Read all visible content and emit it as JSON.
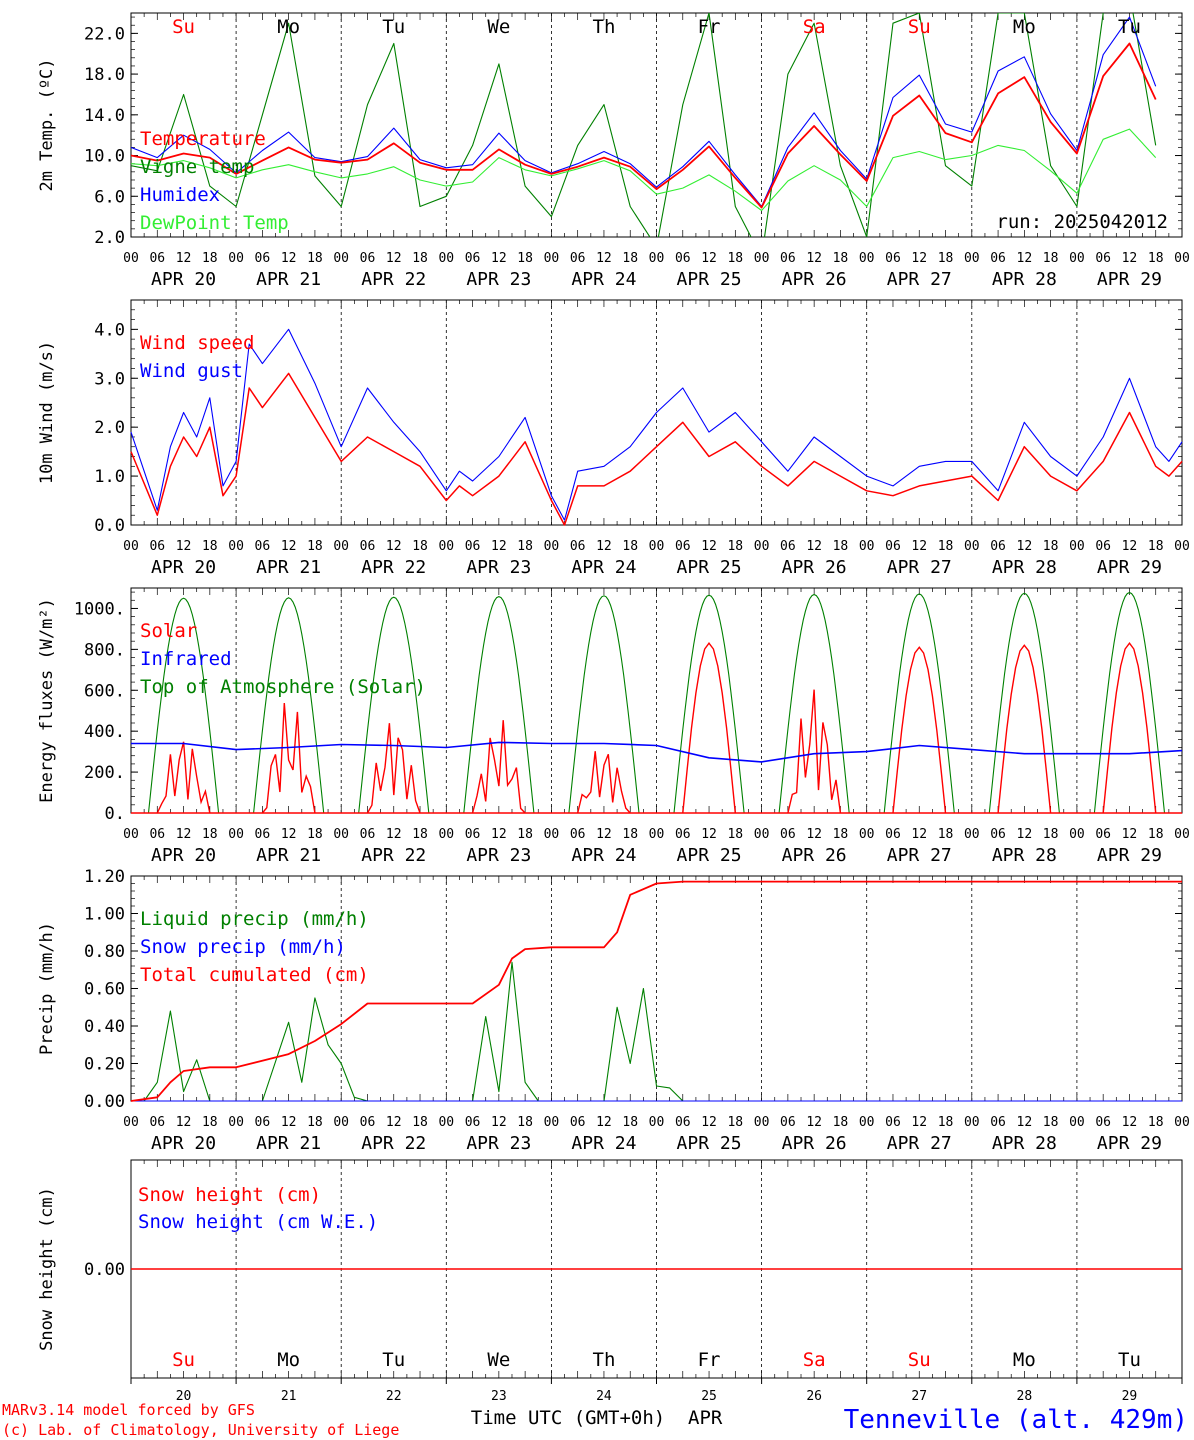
{
  "chart_data": [
    {
      "type": "line",
      "ylabel": "2m Temp. (ºC)",
      "ylim": [
        2,
        24
      ],
      "yticks": [
        "2.0",
        "6.0",
        "10.0",
        "14.0",
        "18.0",
        "22.0"
      ],
      "ytick_values": [
        2,
        6,
        10,
        14,
        18,
        22
      ],
      "run_label": "run: 2025042012",
      "day_labels": [
        "Su",
        "Mo",
        "Tu",
        "We",
        "Th",
        "Fr",
        "Sa",
        "Su",
        "Mo",
        "Tu"
      ],
      "series": [
        {
          "name": "Temperature",
          "color": "#ff0000",
          "hours": [
            0,
            6,
            12,
            18,
            24,
            30,
            36,
            42,
            48,
            54,
            60,
            66,
            72,
            78,
            84,
            90,
            96,
            102,
            108,
            114,
            120,
            126,
            132,
            138,
            144,
            150,
            156,
            162,
            168,
            174,
            180,
            186,
            192,
            198,
            204,
            210,
            216,
            222,
            228,
            234
          ],
          "values": [
            10,
            9.5,
            10.2,
            9.8,
            8.2,
            9.5,
            10.8,
            9.6,
            9.3,
            9.6,
            11.2,
            9.3,
            8.6,
            8.6,
            10.6,
            9.1,
            8.2,
            8.9,
            9.8,
            8.9,
            6.7,
            8.6,
            10.9,
            7.8,
            4.9,
            10.2,
            12.9,
            10.1,
            7.5,
            13.9,
            15.9,
            12.2,
            11.3,
            16.1,
            17.7,
            13.3,
            10.2,
            17.8,
            21.0,
            15.5
          ]
        },
        {
          "name": "Vigne temp",
          "color": "#008000",
          "hours": [
            0,
            6,
            12,
            18,
            24,
            30,
            36,
            42,
            48,
            54,
            60,
            66,
            72,
            78,
            84,
            90,
            96,
            102,
            108,
            114,
            120,
            126,
            132,
            138,
            144,
            150,
            156,
            162,
            168,
            174,
            180,
            186,
            192,
            198,
            204,
            210,
            216,
            222,
            228,
            234
          ],
          "values": [
            9,
            8.5,
            16,
            7,
            5,
            14,
            23,
            8,
            5,
            15,
            21,
            5,
            6,
            11,
            19,
            7,
            4,
            11,
            15,
            5,
            1,
            15,
            24,
            5,
            0,
            18,
            23,
            9,
            2,
            23,
            24,
            9,
            7,
            24,
            24,
            9,
            5,
            24,
            26,
            11
          ]
        },
        {
          "name": "Humidex",
          "color": "#0000ff",
          "hours": [
            0,
            6,
            12,
            18,
            24,
            30,
            36,
            42,
            48,
            54,
            60,
            66,
            72,
            78,
            84,
            90,
            96,
            102,
            108,
            114,
            120,
            126,
            132,
            138,
            144,
            150,
            156,
            162,
            168,
            174,
            180,
            186,
            192,
            198,
            204,
            210,
            216,
            222,
            228,
            234
          ],
          "values": [
            10.8,
            9.8,
            12,
            10.6,
            8.3,
            10.5,
            12.3,
            9.8,
            9.4,
            9.9,
            12.7,
            9.6,
            8.8,
            9.1,
            12.2,
            9.5,
            8.3,
            9.2,
            10.4,
            9.2,
            6.9,
            8.9,
            11.4,
            8.1,
            5.0,
            10.8,
            14.2,
            10.5,
            7.7,
            15.7,
            17.9,
            13.1,
            12.3,
            18.3,
            19.7,
            14.1,
            10.5,
            19.9,
            23.6,
            16.8
          ]
        },
        {
          "name": "DewPoint Temp",
          "color": "#33ee33",
          "hours": [
            0,
            6,
            12,
            18,
            24,
            30,
            36,
            42,
            48,
            54,
            60,
            66,
            72,
            78,
            84,
            90,
            96,
            102,
            108,
            114,
            120,
            126,
            132,
            138,
            144,
            150,
            156,
            162,
            168,
            174,
            180,
            186,
            192,
            198,
            204,
            210,
            216,
            222,
            228,
            234
          ],
          "values": [
            9.2,
            9.0,
            9.5,
            8.8,
            7.8,
            8.6,
            9.1,
            8.4,
            7.8,
            8.2,
            8.9,
            7.6,
            7.0,
            7.4,
            9.8,
            8.6,
            8.0,
            8.7,
            9.5,
            8.5,
            6.2,
            6.8,
            8.1,
            6.5,
            4.6,
            7.5,
            9.0,
            7.6,
            5.0,
            9.8,
            10.4,
            9.6,
            10.0,
            11.0,
            10.5,
            8.5,
            6.3,
            11.6,
            12.6,
            9.8
          ]
        }
      ]
    },
    {
      "type": "line",
      "ylabel": "10m Wind (m/s)",
      "ylim": [
        0,
        4.6
      ],
      "yticks": [
        "0.0",
        "1.0",
        "2.0",
        "3.0",
        "4.0"
      ],
      "ytick_values": [
        0,
        1,
        2,
        3,
        4
      ],
      "series": [
        {
          "name": "Wind speed",
          "color": "#ff0000",
          "hours": [
            0,
            6,
            9,
            12,
            15,
            18,
            21,
            24,
            27,
            30,
            36,
            42,
            48,
            54,
            60,
            66,
            72,
            75,
            78,
            84,
            90,
            96,
            99,
            102,
            108,
            114,
            120,
            126,
            132,
            138,
            144,
            150,
            156,
            162,
            168,
            174,
            180,
            186,
            192,
            198,
            204,
            210,
            216,
            222,
            228,
            234,
            237,
            240
          ],
          "values": [
            1.5,
            0.2,
            1.2,
            1.8,
            1.4,
            2.0,
            0.6,
            1.0,
            2.8,
            2.4,
            3.1,
            2.2,
            1.3,
            1.8,
            1.5,
            1.2,
            0.5,
            0.8,
            0.6,
            1.0,
            1.7,
            0.5,
            0.0,
            0.8,
            0.8,
            1.1,
            1.6,
            2.1,
            1.4,
            1.7,
            1.2,
            0.8,
            1.3,
            1.0,
            0.7,
            0.6,
            0.8,
            0.9,
            1.0,
            0.5,
            1.6,
            1.0,
            0.7,
            1.3,
            2.3,
            1.2,
            1.0,
            1.3
          ]
        },
        {
          "name": "Wind gust",
          "color": "#0000ff",
          "hours": [
            0,
            6,
            9,
            12,
            15,
            18,
            21,
            24,
            27,
            30,
            36,
            42,
            48,
            54,
            60,
            66,
            72,
            75,
            78,
            84,
            90,
            96,
            99,
            102,
            108,
            114,
            120,
            126,
            132,
            138,
            144,
            150,
            156,
            162,
            168,
            174,
            180,
            186,
            192,
            198,
            204,
            210,
            216,
            222,
            228,
            234,
            237,
            240
          ],
          "values": [
            1.9,
            0.3,
            1.6,
            2.3,
            1.8,
            2.6,
            0.8,
            1.3,
            3.7,
            3.3,
            4.0,
            2.9,
            1.6,
            2.8,
            2.1,
            1.5,
            0.7,
            1.1,
            0.9,
            1.4,
            2.2,
            0.6,
            0.1,
            1.1,
            1.2,
            1.6,
            2.3,
            2.8,
            1.9,
            2.3,
            1.7,
            1.1,
            1.8,
            1.4,
            1.0,
            0.8,
            1.2,
            1.3,
            1.3,
            0.7,
            2.1,
            1.4,
            1.0,
            1.8,
            3.0,
            1.6,
            1.3,
            1.7
          ]
        }
      ]
    },
    {
      "type": "line",
      "ylabel": "Energy fluxes (W/m²)",
      "ylim": [
        0,
        1100
      ],
      "yticks": [
        "0.",
        "200.",
        "400.",
        "600.",
        "800.",
        "1000."
      ],
      "ytick_values": [
        0,
        200,
        400,
        600,
        800,
        1000
      ],
      "series": [
        {
          "name": "Solar",
          "color": "#ff0000",
          "days_peak": [
            430,
            600,
            510,
            490,
            370,
            830,
            680,
            810,
            820,
            830
          ]
        },
        {
          "name": "Infrared",
          "color": "#0000ff",
          "hours": [
            0,
            12,
            24,
            36,
            48,
            60,
            72,
            84,
            96,
            108,
            120,
            132,
            144,
            156,
            168,
            180,
            192,
            204,
            216,
            228,
            240
          ],
          "values": [
            340,
            340,
            310,
            320,
            335,
            330,
            320,
            345,
            340,
            340,
            330,
            270,
            250,
            290,
            300,
            330,
            310,
            290,
            290,
            290,
            305
          ]
        },
        {
          "name": "Top of Atmosphere (Solar)",
          "color": "#008000",
          "peak": [
            1050,
            1052,
            1055,
            1058,
            1062,
            1065,
            1068,
            1071,
            1074,
            1078
          ]
        }
      ]
    },
    {
      "type": "line",
      "ylabel": "Precip (mm/h)",
      "ylim": [
        0,
        1.2
      ],
      "yticks": [
        "0.00",
        "0.20",
        "0.40",
        "0.60",
        "0.80",
        "1.00",
        "1.20"
      ],
      "ytick_values": [
        0,
        0.2,
        0.4,
        0.6,
        0.8,
        1.0,
        1.2
      ],
      "series": [
        {
          "name": "Liquid precip (mm/h)",
          "color": "#008000",
          "hours": [
            0,
            3,
            6,
            9,
            12,
            15,
            18,
            21,
            24,
            30,
            36,
            39,
            42,
            45,
            48,
            51,
            54,
            60,
            66,
            72,
            78,
            81,
            84,
            87,
            90,
            93,
            96,
            102,
            108,
            111,
            114,
            117,
            120,
            123,
            126,
            240
          ],
          "values": [
            0,
            0,
            0.1,
            0.48,
            0.05,
            0.22,
            0,
            0,
            0,
            0,
            0.42,
            0.1,
            0.55,
            0.3,
            0.2,
            0.02,
            0,
            0,
            0,
            0,
            0,
            0.45,
            0.05,
            0.74,
            0.1,
            0,
            0,
            0,
            0,
            0.5,
            0.2,
            0.6,
            0.08,
            0.07,
            0,
            0
          ]
        },
        {
          "name": "Snow precip (mm/h)",
          "color": "#0000ff",
          "hours": [
            0,
            240
          ],
          "values": [
            0,
            0
          ]
        },
        {
          "name": "Total cumulated (cm)",
          "color": "#ff0000",
          "hours": [
            0,
            6,
            9,
            12,
            18,
            24,
            36,
            42,
            48,
            54,
            60,
            72,
            78,
            84,
            87,
            90,
            96,
            108,
            111,
            114,
            120,
            126,
            240
          ],
          "values": [
            0,
            0.02,
            0.1,
            0.16,
            0.18,
            0.18,
            0.25,
            0.32,
            0.41,
            0.52,
            0.52,
            0.52,
            0.52,
            0.62,
            0.76,
            0.81,
            0.82,
            0.82,
            0.9,
            1.1,
            1.16,
            1.17,
            1.17
          ]
        }
      ]
    },
    {
      "type": "line",
      "ylabel": "Snow height (cm)",
      "ylim": [
        -1,
        1
      ],
      "yticks": [
        "0.00"
      ],
      "ytick_values": [
        0
      ],
      "series": [
        {
          "name": "Snow height (cm)",
          "color": "#ff0000",
          "hours": [
            0,
            240
          ],
          "values": [
            0,
            0
          ]
        },
        {
          "name": "Snow height (cm W.E.)",
          "color": "#0000ff",
          "hours": [],
          "values": []
        }
      ]
    }
  ],
  "xaxis": {
    "hour_ticks": [
      "00",
      "06",
      "12",
      "18"
    ],
    "end_tick": "00",
    "dates": [
      "APR 20",
      "APR 21",
      "APR 22",
      "APR 23",
      "APR 24",
      "APR 25",
      "APR 26",
      "APR 27",
      "APR 28",
      "APR 29"
    ],
    "bottom_days": [
      "Su",
      "Mo",
      "Tu",
      "We",
      "Th",
      "Fr",
      "Sa",
      "Su",
      "Mo",
      "Tu"
    ],
    "bottom_day_colors": [
      "#ff0000",
      "#000000",
      "#000000",
      "#000000",
      "#000000",
      "#000000",
      "#ff0000",
      "#ff0000",
      "#000000",
      "#000000"
    ],
    "bottom_numbers": [
      "20",
      "21",
      "22",
      "23",
      "24",
      "25",
      "26",
      "27",
      "28",
      "29"
    ],
    "xlabel": "Time UTC (GMT+0h)",
    "month": "APR"
  },
  "footer": {
    "credit_line1": "MARv3.14 model forced by GFS",
    "credit_line2": "(c) Lab. of Climatology, University of Liege",
    "station": "Tenneville (alt. 429m)"
  }
}
